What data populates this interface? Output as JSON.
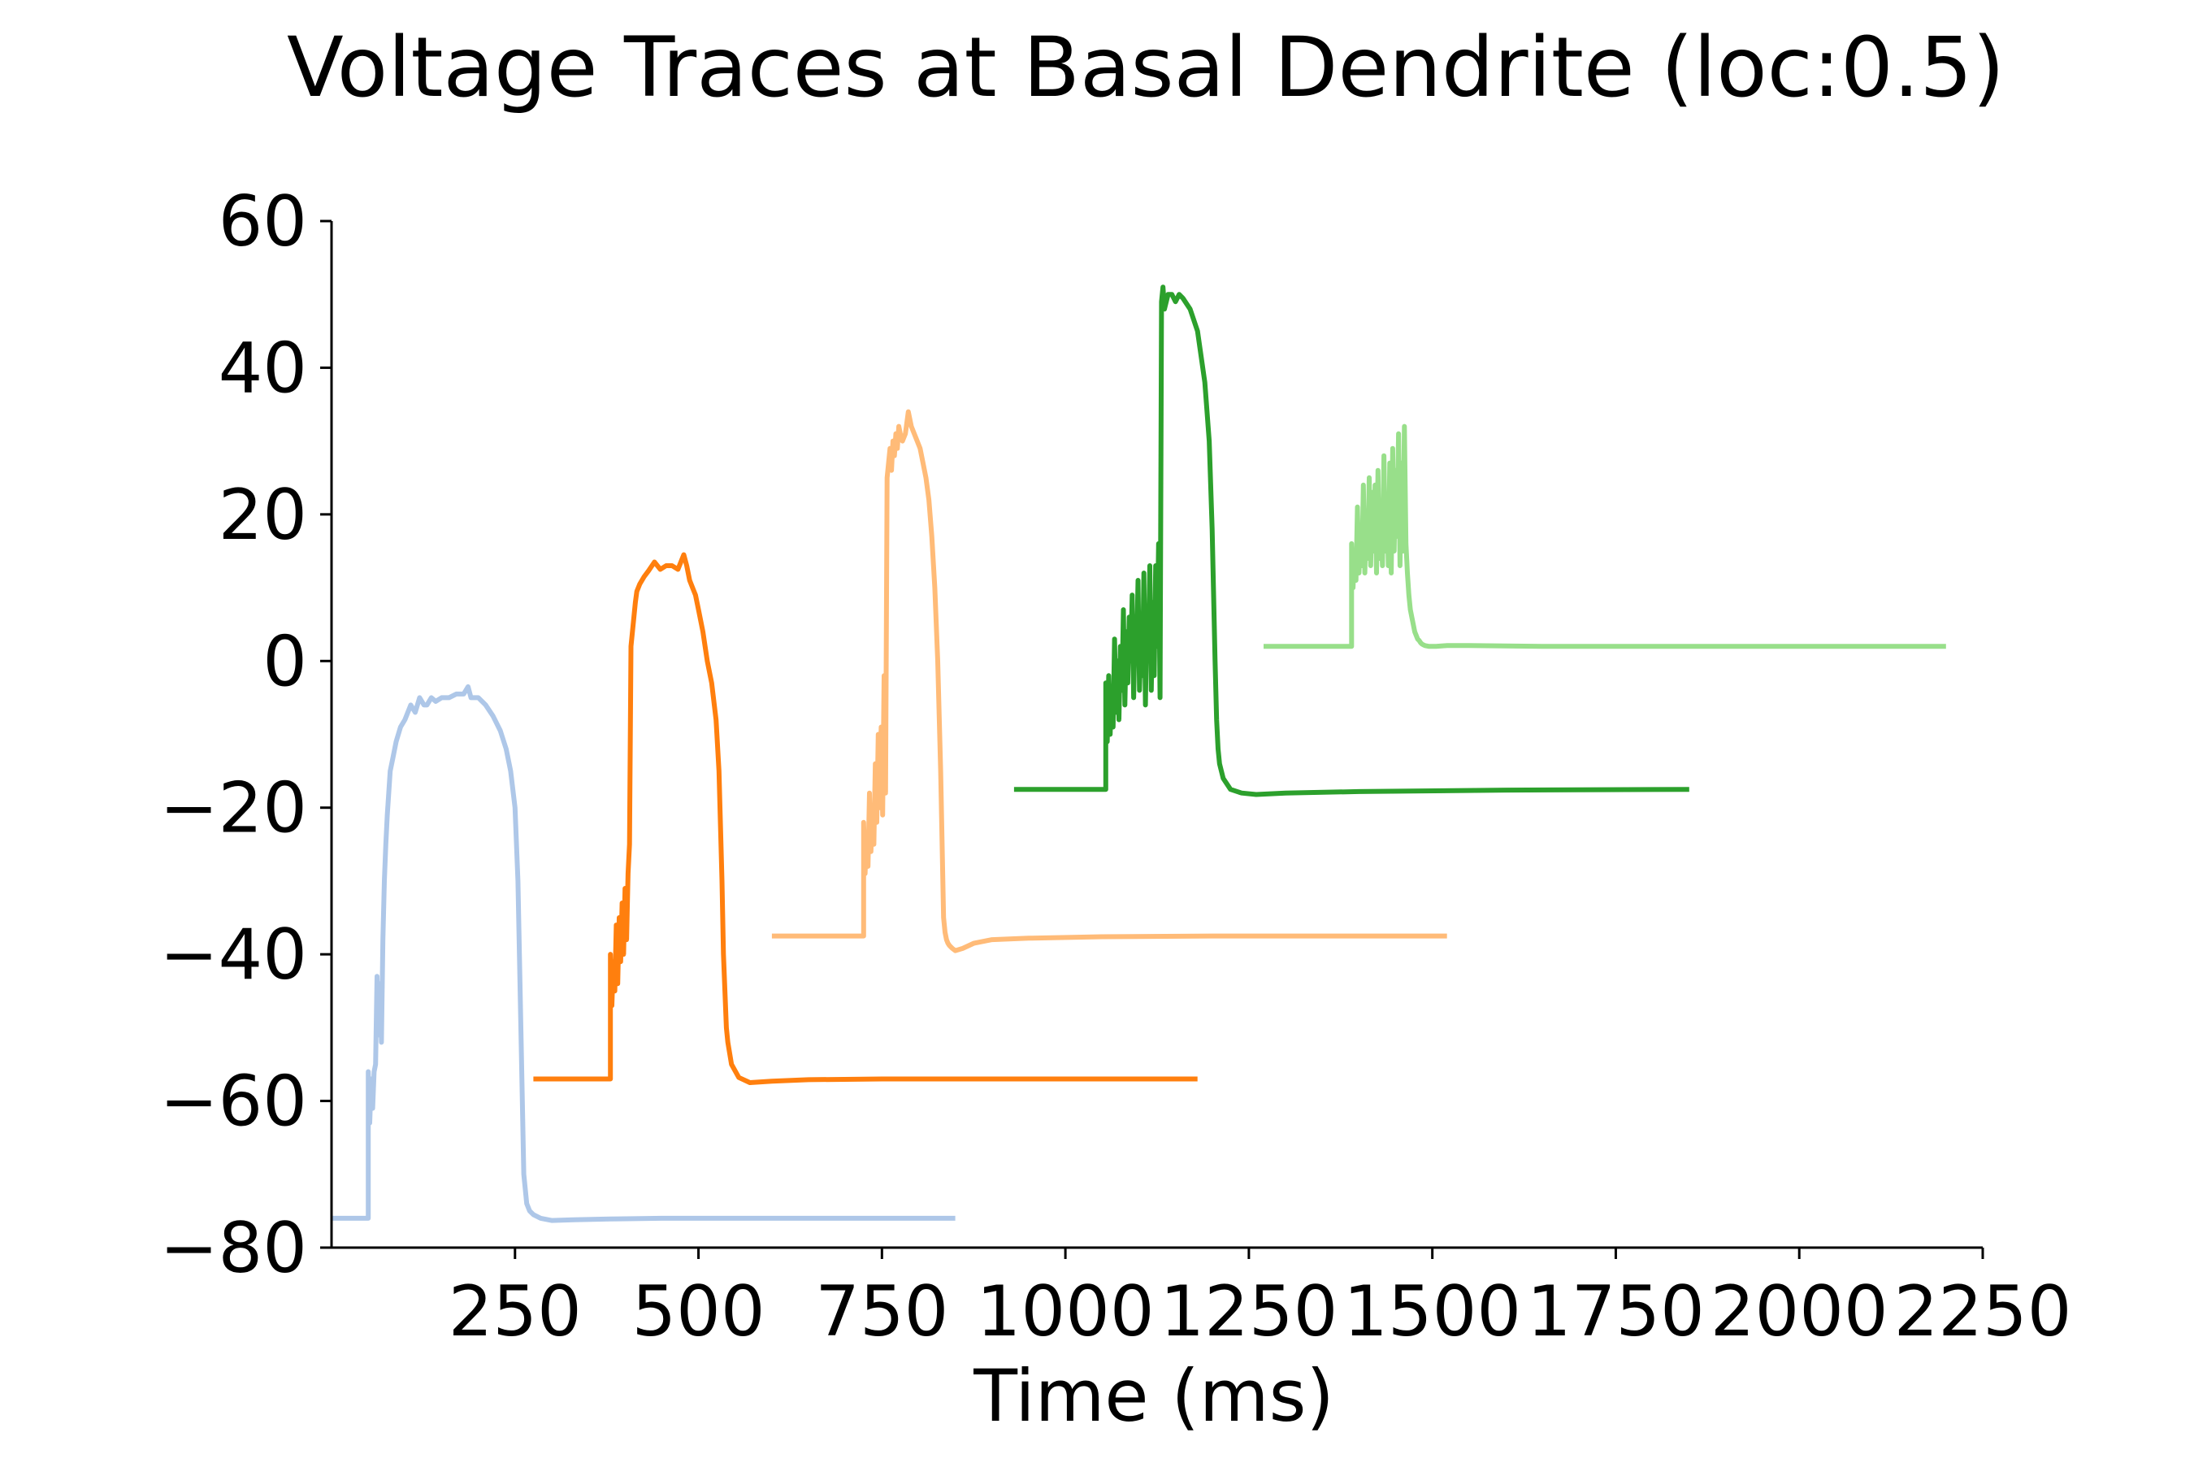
{
  "chart_data": {
    "type": "line",
    "title": "Voltage Traces at Basal Dendrite (loc:0.5)",
    "xlabel": "Time (ms)",
    "ylabel": "",
    "xlim": [
      0,
      2250
    ],
    "ylim": [
      -80,
      60
    ],
    "xticks": [
      250,
      500,
      750,
      1000,
      1250,
      1500,
      1750,
      2000,
      2250
    ],
    "xtick_labels": [
      "250",
      "500",
      "750",
      "1000",
      "1250",
      "1500",
      "1750",
      "2000",
      "2250"
    ],
    "yticks": [
      -80,
      -60,
      -40,
      -20,
      0,
      20,
      40,
      60
    ],
    "ytick_labels": [
      "−80",
      "−60",
      "−40",
      "−20",
      "0",
      "20",
      "40",
      "60"
    ],
    "grid": false,
    "spines": [
      "left",
      "bottom"
    ],
    "series": [
      {
        "color": "#aec7e8",
        "x": [
          0,
          50,
          50,
          52,
          54,
          56,
          58,
          60,
          62,
          64,
          66,
          68,
          70,
          72,
          74,
          76,
          78,
          80,
          84,
          88,
          94,
          100,
          108,
          114,
          120,
          126,
          130,
          136,
          142,
          150,
          160,
          170,
          180,
          186,
          190,
          196,
          200,
          210,
          220,
          230,
          238,
          244,
          250,
          254,
          258,
          262,
          264,
          266,
          268,
          270,
          275,
          285,
          300,
          330,
          380,
          450,
          600,
          850
        ],
        "y": [
          -76,
          -76,
          -56,
          -63,
          -57,
          -61,
          -56,
          -55,
          -43,
          -51,
          -44,
          -52,
          -38,
          -30,
          -25,
          -21,
          -18,
          -15,
          -13,
          -11,
          -9,
          -8,
          -6,
          -7,
          -5,
          -6,
          -6,
          -5,
          -5.5,
          -5,
          -5,
          -4.5,
          -4.5,
          -3.5,
          -5,
          -5,
          -5,
          -6,
          -7.5,
          -9.5,
          -12,
          -15,
          -20,
          -30,
          -50,
          -70,
          -72,
          -74,
          -74.5,
          -75,
          -75.5,
          -76,
          -76.3,
          -76.2,
          -76.1,
          -76,
          -76,
          -76
        ]
      },
      {
        "color": "#ff7f0e",
        "x": [
          275,
          380,
          380,
          382,
          384,
          386,
          388,
          390,
          392,
          394,
          396,
          398,
          400,
          402,
          404,
          406,
          408,
          410,
          412,
          414,
          416,
          420,
          426,
          432,
          440,
          448,
          456,
          464,
          472,
          480,
          484,
          488,
          492,
          496,
          500,
          506,
          512,
          518,
          524,
          528,
          532,
          534,
          536,
          538,
          540,
          545,
          555,
          570,
          600,
          650,
          750,
          900,
          1180
        ],
        "y": [
          -57,
          -57,
          -40,
          -47,
          -41,
          -45,
          -36,
          -44,
          -35,
          -41,
          -33,
          -40,
          -31,
          -38,
          -29,
          -25,
          2,
          4,
          6,
          8,
          9.5,
          10.5,
          11.5,
          12.3,
          13.5,
          12.5,
          13,
          13,
          12.5,
          14.5,
          13,
          11,
          10,
          9,
          7,
          4,
          0,
          -3,
          -8,
          -15,
          -30,
          -40,
          -45,
          -50,
          -52,
          -55,
          -56.8,
          -57.5,
          -57.3,
          -57.1,
          -57,
          -57,
          -57
        ]
      },
      {
        "color": "#ffbb78",
        "x": [
          600,
          725,
          725,
          727,
          729,
          731,
          733,
          735,
          737,
          739,
          741,
          743,
          745,
          747,
          749,
          751,
          753,
          755,
          757,
          759,
          761,
          763,
          765,
          767,
          769,
          771,
          773,
          775,
          778,
          782,
          786,
          790,
          794,
          798,
          802,
          806,
          810,
          814,
          818,
          822,
          826,
          830,
          834,
          836,
          838,
          840,
          842,
          844,
          846,
          850,
          860,
          875,
          900,
          950,
          1050,
          1200,
          1520
        ],
        "y": [
          -37.5,
          -37.5,
          -22,
          -29,
          -24,
          -28,
          -18,
          -26,
          -20,
          -25,
          -14,
          -22,
          -10,
          -20,
          -9,
          -21,
          -2,
          -18,
          25,
          27,
          29,
          26,
          30,
          28,
          31,
          29,
          32,
          31,
          30,
          31,
          34,
          32,
          31,
          30,
          29,
          27,
          25,
          22,
          17,
          10,
          0,
          -15,
          -35,
          -37,
          -38,
          -38.5,
          -38.8,
          -39,
          -39.2,
          -39.5,
          -39.2,
          -38.5,
          -38,
          -37.8,
          -37.6,
          -37.5,
          -37.5
        ]
      },
      {
        "color": "#2ca02c",
        "x": [
          930,
          1055,
          1055,
          1057,
          1059,
          1061,
          1063,
          1065,
          1067,
          1069,
          1071,
          1073,
          1075,
          1077,
          1079,
          1081,
          1083,
          1085,
          1087,
          1089,
          1091,
          1093,
          1095,
          1097,
          1099,
          1101,
          1103,
          1105,
          1107,
          1109,
          1111,
          1113,
          1115,
          1117,
          1119,
          1121,
          1123,
          1125,
          1127,
          1129,
          1131,
          1133,
          1135,
          1140,
          1145,
          1150,
          1155,
          1160,
          1170,
          1180,
          1190,
          1196,
          1200,
          1204,
          1206,
          1208,
          1210,
          1215,
          1225,
          1240,
          1260,
          1300,
          1400,
          1600,
          1850
        ],
        "y": [
          -17.5,
          -17.5,
          -3,
          -11,
          -2,
          -10,
          -4,
          -9,
          3,
          -7,
          0,
          -8,
          2,
          -4,
          7,
          -6,
          4,
          -3,
          6,
          0,
          9,
          -5,
          5,
          1,
          11,
          -4,
          3,
          -2,
          12,
          -6,
          7,
          2,
          13,
          -4,
          8,
          -2,
          13,
          2,
          16,
          -5,
          49,
          51,
          48,
          50,
          50,
          49,
          50,
          49.5,
          48,
          45,
          38,
          30,
          18,
          0,
          -8,
          -12,
          -14,
          -16,
          -17.5,
          -18,
          -18.2,
          -18,
          -17.8,
          -17.6,
          -17.5
        ]
      },
      {
        "color": "#98df8a",
        "x": [
          1270,
          1390,
          1390,
          1392,
          1394,
          1396,
          1398,
          1400,
          1402,
          1404,
          1406,
          1408,
          1410,
          1412,
          1414,
          1416,
          1418,
          1420,
          1422,
          1424,
          1426,
          1428,
          1430,
          1432,
          1434,
          1436,
          1438,
          1440,
          1442,
          1444,
          1446,
          1448,
          1450,
          1452,
          1454,
          1456,
          1458,
          1460,
          1462,
          1464,
          1466,
          1468,
          1470,
          1472,
          1474,
          1476,
          1478,
          1480,
          1482,
          1484,
          1486,
          1488,
          1490,
          1495,
          1505,
          1520,
          1550,
          1650,
          1900,
          2200
        ],
        "y": [
          2,
          2,
          16,
          10,
          15,
          11,
          21,
          12,
          17,
          13,
          24,
          12,
          20,
          14,
          25,
          13,
          23,
          15,
          24,
          12,
          26,
          14,
          19,
          13,
          28,
          15,
          22,
          13,
          27,
          12,
          29,
          15,
          26,
          17,
          31,
          13,
          27,
          15,
          32,
          16,
          12,
          9,
          7,
          6,
          5,
          4,
          3.5,
          3,
          2.8,
          2.5,
          2.3,
          2.2,
          2.1,
          2.0,
          2,
          2.1,
          2.1,
          2,
          2,
          2
        ]
      }
    ]
  }
}
